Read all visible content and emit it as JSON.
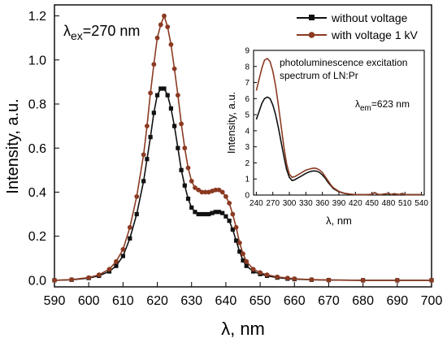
{
  "chart_data": [
    {
      "type": "line",
      "xlabel": "λ, nm",
      "ylabel": "Intensity, a.u.",
      "xlim": [
        590,
        700
      ],
      "ylim": [
        -0.03,
        1.25
      ],
      "xticks": [
        590,
        600,
        610,
        620,
        630,
        640,
        650,
        660,
        670,
        680,
        690,
        700
      ],
      "yticks": [
        "0.0",
        "0.2",
        "0.4",
        "0.6",
        "0.8",
        "1.0",
        "1.2"
      ],
      "yticks_num": [
        0,
        0.2,
        0.4,
        0.6,
        0.8,
        1.0,
        1.2
      ],
      "annotation": {
        "main": "λ",
        "sub": "ex",
        "rest": "=270 nm"
      },
      "legend_position": "top-right",
      "series": [
        {
          "name": "without voltage",
          "color": "#111111",
          "marker": "square",
          "x": [
            590,
            595,
            600,
            603,
            606,
            608,
            610,
            612,
            614,
            616,
            617,
            618,
            619,
            620,
            621,
            622,
            623,
            624,
            625,
            626,
            627,
            628,
            629,
            630,
            631,
            632,
            633,
            634,
            635,
            636,
            637,
            638,
            639,
            640,
            641,
            642,
            643,
            644,
            645,
            646,
            648,
            650,
            652,
            655,
            658,
            660,
            665,
            670,
            680,
            690,
            700
          ],
          "y": [
            0.0,
            0.002,
            0.01,
            0.02,
            0.04,
            0.065,
            0.11,
            0.19,
            0.3,
            0.45,
            0.55,
            0.65,
            0.76,
            0.84,
            0.87,
            0.87,
            0.84,
            0.78,
            0.7,
            0.6,
            0.5,
            0.43,
            0.37,
            0.33,
            0.31,
            0.3,
            0.3,
            0.3,
            0.3,
            0.305,
            0.31,
            0.31,
            0.305,
            0.29,
            0.27,
            0.23,
            0.18,
            0.13,
            0.09,
            0.065,
            0.04,
            0.028,
            0.02,
            0.012,
            0.007,
            0.005,
            0.002,
            0.001,
            0.0,
            0.0,
            0.0
          ]
        },
        {
          "name": "with voltage 1 kV",
          "color": "#8b3a22",
          "marker": "circle",
          "x": [
            590,
            595,
            600,
            603,
            606,
            608,
            610,
            612,
            614,
            616,
            617,
            618,
            619,
            620,
            621,
            622,
            623,
            624,
            625,
            626,
            627,
            628,
            629,
            630,
            631,
            632,
            633,
            634,
            635,
            636,
            637,
            638,
            639,
            640,
            641,
            642,
            643,
            644,
            645,
            646,
            648,
            650,
            652,
            655,
            658,
            660,
            665,
            670,
            680,
            690,
            700
          ],
          "y": [
            0.0,
            0.003,
            0.012,
            0.025,
            0.05,
            0.085,
            0.14,
            0.24,
            0.38,
            0.57,
            0.7,
            0.85,
            0.98,
            1.1,
            1.16,
            1.2,
            1.15,
            1.07,
            0.96,
            0.84,
            0.71,
            0.6,
            0.51,
            0.45,
            0.42,
            0.41,
            0.4,
            0.4,
            0.4,
            0.405,
            0.41,
            0.41,
            0.4,
            0.38,
            0.35,
            0.3,
            0.24,
            0.17,
            0.12,
            0.085,
            0.05,
            0.035,
            0.025,
            0.015,
            0.01,
            0.007,
            0.003,
            0.001,
            0.0,
            0.0,
            0.0
          ]
        }
      ]
    },
    {
      "type": "line",
      "title_lines": [
        "photoluminescence excitation",
        "spectrum of LN:Pr"
      ],
      "annotation": {
        "main": "λ",
        "sub": "em",
        "rest": "=623 nm"
      },
      "xlabel": "λ, nm",
      "ylabel": "Intensity, a.u.",
      "xlim": [
        235,
        545
      ],
      "ylim": [
        0,
        9
      ],
      "xticks": [
        240,
        270,
        300,
        330,
        360,
        390,
        420,
        450,
        480,
        510,
        540
      ],
      "yticks": [
        0,
        1,
        2,
        3,
        4,
        5,
        6,
        7,
        8,
        9
      ],
      "series": [
        {
          "name": "",
          "color": "#111111",
          "x": [
            240,
            245,
            250,
            255,
            260,
            265,
            270,
            275,
            280,
            285,
            290,
            295,
            300,
            305,
            310,
            315,
            320,
            325,
            330,
            335,
            340,
            345,
            350,
            355,
            360,
            365,
            370,
            375,
            380,
            390,
            400,
            410,
            420,
            430,
            440,
            450,
            455,
            460,
            465,
            470,
            480,
            485,
            490,
            500,
            505,
            510,
            520,
            530,
            540
          ],
          "y": [
            4.7,
            5.2,
            5.7,
            6.0,
            6.1,
            6.0,
            5.6,
            5.0,
            4.2,
            3.3,
            2.4,
            1.6,
            1.1,
            0.9,
            0.95,
            1.05,
            1.15,
            1.25,
            1.35,
            1.42,
            1.48,
            1.5,
            1.48,
            1.4,
            1.25,
            1.05,
            0.8,
            0.6,
            0.4,
            0.2,
            0.1,
            0.05,
            0.03,
            0.02,
            0.02,
            0.05,
            0.15,
            0.05,
            0.03,
            0.05,
            0.1,
            0.03,
            0.08,
            0.03,
            0.1,
            0.03,
            0.02,
            0.02,
            0.02
          ]
        },
        {
          "name": "",
          "color": "#8b3a22",
          "x": [
            240,
            245,
            250,
            255,
            260,
            265,
            270,
            275,
            280,
            285,
            290,
            295,
            300,
            305,
            310,
            315,
            320,
            325,
            330,
            335,
            340,
            345,
            350,
            355,
            360,
            365,
            370,
            375,
            380,
            390,
            400,
            410,
            420,
            430,
            440,
            450,
            455,
            460,
            465,
            470,
            480,
            485,
            490,
            500,
            505,
            510,
            520,
            530,
            540
          ],
          "y": [
            6.5,
            7.2,
            7.9,
            8.4,
            8.5,
            8.3,
            7.7,
            6.8,
            5.6,
            4.3,
            3.0,
            1.95,
            1.3,
            1.1,
            1.15,
            1.25,
            1.35,
            1.45,
            1.55,
            1.6,
            1.65,
            1.68,
            1.65,
            1.55,
            1.4,
            1.15,
            0.9,
            0.65,
            0.45,
            0.22,
            0.11,
            0.06,
            0.03,
            0.02,
            0.02,
            0.05,
            0.15,
            0.05,
            0.03,
            0.05,
            0.1,
            0.03,
            0.08,
            0.03,
            0.1,
            0.03,
            0.02,
            0.02,
            0.02
          ]
        }
      ]
    }
  ]
}
